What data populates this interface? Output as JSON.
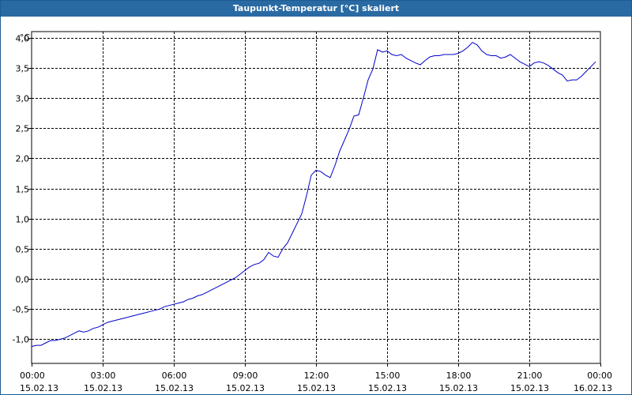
{
  "window": {
    "title": "Taupunkt-Temperatur [°C] skaliert"
  },
  "chart_data": {
    "type": "line",
    "title": "Taupunkt-Temperatur [°C] skaliert",
    "ylabel": "°C",
    "xlabel": "",
    "ylim": [
      -1.4,
      4.1
    ],
    "y_ticks": [
      "4,0",
      "3,5",
      "3,0",
      "2,5",
      "2,0",
      "1,5",
      "1,0",
      "0,5",
      "0,0",
      "-0,5",
      "-1,0"
    ],
    "y_tick_values": [
      4.0,
      3.5,
      3.0,
      2.5,
      2.0,
      1.5,
      1.0,
      0.5,
      0.0,
      -0.5,
      -1.0
    ],
    "x_ticks": [
      {
        "time": "00:00",
        "date": "15.02.13"
      },
      {
        "time": "03:00",
        "date": "15.02.13"
      },
      {
        "time": "06:00",
        "date": "15.02.13"
      },
      {
        "time": "09:00",
        "date": "15.02.13"
      },
      {
        "time": "12:00",
        "date": "15.02.13"
      },
      {
        "time": "15:00",
        "date": "15.02.13"
      },
      {
        "time": "18:00",
        "date": "15.02.13"
      },
      {
        "time": "21:00",
        "date": "15.02.13"
      },
      {
        "time": "00:00",
        "date": "16.02.13"
      }
    ],
    "x_tick_hours": [
      0,
      3,
      6,
      9,
      12,
      15,
      18,
      21,
      24
    ],
    "grid": true,
    "line_color": "#0000c8",
    "series": [
      {
        "x": [
          0.0,
          0.2,
          0.4,
          0.6,
          0.8,
          1.0,
          1.2,
          1.4,
          1.6,
          1.8,
          2.0,
          2.2,
          2.4,
          2.6,
          2.8,
          3.0,
          3.2,
          3.4,
          3.6,
          3.8,
          4.0,
          4.2,
          4.4,
          4.6,
          4.8,
          5.0,
          5.2,
          5.4,
          5.6,
          5.8,
          6.0,
          6.2,
          6.4,
          6.6,
          6.8,
          7.0,
          7.2,
          7.4,
          7.6,
          7.8,
          8.0,
          8.2,
          8.4,
          8.6,
          8.8,
          9.0,
          9.2,
          9.4,
          9.6,
          9.8,
          10.0,
          10.2,
          10.4,
          10.6,
          10.8,
          11.0,
          11.2,
          11.4,
          11.6,
          11.8,
          12.0,
          12.2,
          12.4,
          12.6,
          12.8,
          13.0,
          13.2,
          13.4,
          13.6,
          13.8,
          14.0,
          14.2,
          14.4,
          14.6,
          14.8,
          15.0,
          15.2,
          15.4,
          15.6,
          15.8,
          16.0,
          16.2,
          16.4,
          16.6,
          16.8,
          17.0,
          17.2,
          17.4,
          17.6,
          17.8,
          18.0,
          18.2,
          18.4,
          18.6,
          18.8,
          19.0,
          19.2,
          19.4,
          19.6,
          19.8,
          20.0,
          20.2,
          20.4,
          20.6,
          20.8,
          21.0,
          21.2,
          21.4,
          21.6,
          21.8,
          22.0,
          22.2,
          22.4,
          22.6,
          22.8,
          23.0,
          23.2,
          23.4,
          23.6,
          23.8
        ],
        "y": [
          -1.12,
          -1.1,
          -1.1,
          -1.06,
          -1.02,
          -1.02,
          -1.0,
          -0.98,
          -0.94,
          -0.9,
          -0.86,
          -0.88,
          -0.86,
          -0.82,
          -0.8,
          -0.76,
          -0.72,
          -0.7,
          -0.68,
          -0.66,
          -0.64,
          -0.62,
          -0.6,
          -0.58,
          -0.56,
          -0.54,
          -0.52,
          -0.5,
          -0.46,
          -0.44,
          -0.42,
          -0.4,
          -0.38,
          -0.34,
          -0.32,
          -0.28,
          -0.26,
          -0.22,
          -0.18,
          -0.14,
          -0.1,
          -0.06,
          -0.02,
          0.02,
          0.08,
          0.14,
          0.2,
          0.24,
          0.26,
          0.32,
          0.44,
          0.38,
          0.36,
          0.5,
          0.6,
          0.76,
          0.92,
          1.08,
          1.38,
          1.72,
          1.8,
          1.78,
          1.72,
          1.68,
          1.88,
          2.12,
          2.3,
          2.48,
          2.7,
          2.72,
          3.0,
          3.3,
          3.48,
          3.8,
          3.76,
          3.78,
          3.72,
          3.7,
          3.72,
          3.66,
          3.62,
          3.58,
          3.55,
          3.62,
          3.68,
          3.7,
          3.7,
          3.72,
          3.72,
          3.72,
          3.74,
          3.78,
          3.84,
          3.92,
          3.88,
          3.78,
          3.72,
          3.7,
          3.7,
          3.66,
          3.68,
          3.72,
          3.66,
          3.6,
          3.56,
          3.52,
          3.58,
          3.6,
          3.58,
          3.54,
          3.48,
          3.42,
          3.38,
          3.28,
          3.3,
          3.3,
          3.36,
          3.44,
          3.52,
          3.6
        ]
      }
    ]
  }
}
